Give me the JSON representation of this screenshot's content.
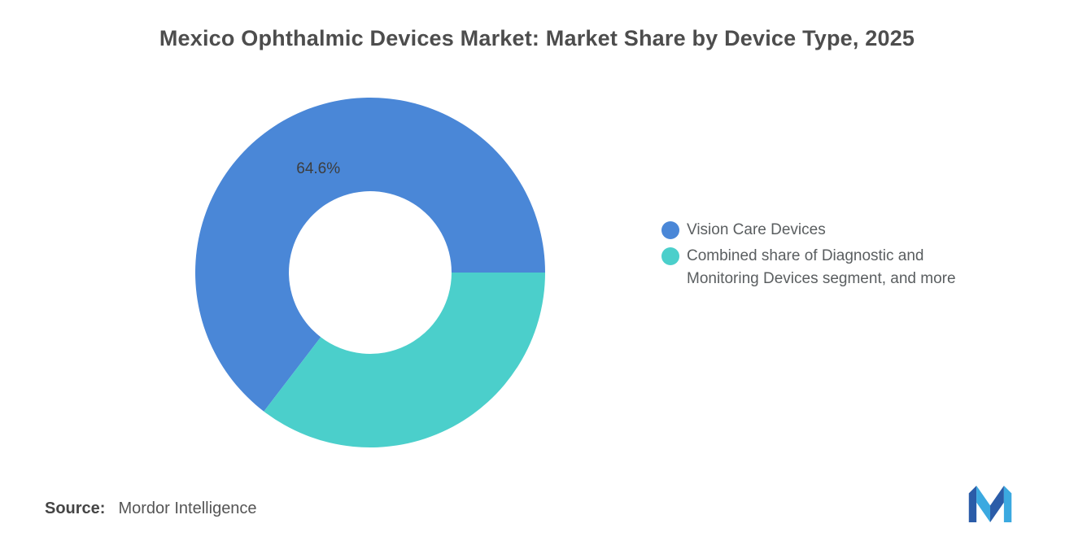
{
  "title": "Mexico Ophthalmic Devices Market: Market Share by Device Type, 2025",
  "chart_data": {
    "type": "pie",
    "subtype": "donut",
    "title": "Mexico Ophthalmic Devices Market: Market Share by Device Type, 2025",
    "inner_radius_ratio": 0.465,
    "start_angle_deg": 0,
    "direction": "counterclockwise",
    "legend_position": "right",
    "segments": [
      {
        "label": "Vision Care Devices",
        "value": 64.6,
        "data_label": "64.6%",
        "color": "#4A87D7"
      },
      {
        "label": "Combined share of Diagnostic and Monitoring Devices segment, and more",
        "value": 35.4,
        "data_label": "",
        "color": "#4BCFCB"
      }
    ]
  },
  "legend": {
    "items": [
      {
        "label": "Vision Care Devices",
        "color": "#4A87D7"
      },
      {
        "label": "Combined share of Diagnostic and Monitoring Devices segment, and more",
        "color": "#4BCFCB"
      }
    ]
  },
  "source": {
    "label": "Source:",
    "value": "Mordor Intelligence"
  },
  "brand": {
    "name": "Mordor Intelligence",
    "logo_dark": "#2B5CA8",
    "logo_light": "#3BA9E0"
  }
}
